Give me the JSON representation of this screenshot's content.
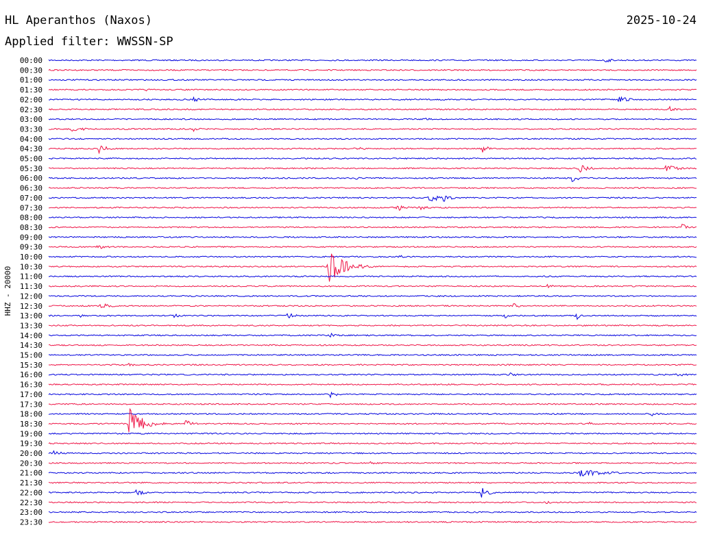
{
  "header": {
    "station": "HL Aperanthos (Naxos)",
    "date": "2025-10-24",
    "filter_label": "Applied filter: WWSSN-SP"
  },
  "chart_data": {
    "type": "line",
    "title": "HL Aperanthos (Naxos)",
    "ylabel": "HHZ - 20000",
    "y_tick_labels": [
      "00:00",
      "00:30",
      "01:00",
      "01:30",
      "02:00",
      "02:30",
      "03:00",
      "03:30",
      "04:00",
      "04:30",
      "05:00",
      "05:30",
      "06:00",
      "06:30",
      "07:00",
      "07:30",
      "08:00",
      "08:30",
      "09:00",
      "09:30",
      "10:00",
      "10:30",
      "11:00",
      "11:30",
      "12:00",
      "12:30",
      "13:00",
      "13:30",
      "14:00",
      "14:30",
      "15:00",
      "15:30",
      "16:00",
      "16:30",
      "17:00",
      "17:30",
      "18:00",
      "18:30",
      "19:00",
      "19:30",
      "20:00",
      "20:30",
      "21:00",
      "21:30",
      "22:00",
      "22:30",
      "23:00",
      "23:30"
    ],
    "trace_colors": [
      "#0000dd",
      "#ee1144"
    ],
    "row_minutes": 30,
    "events": [
      {
        "row": "00:00",
        "minute": 25.7,
        "amplitude": 4,
        "duration": 0.6
      },
      {
        "row": "01:30",
        "minute": 4.5,
        "amplitude": 2,
        "duration": 0.5
      },
      {
        "row": "02:00",
        "minute": 6.7,
        "amplitude": 4,
        "duration": 0.6
      },
      {
        "row": "02:00",
        "minute": 26.3,
        "amplitude": 5,
        "duration": 1.0
      },
      {
        "row": "02:30",
        "minute": 28.7,
        "amplitude": 6,
        "duration": 0.4
      },
      {
        "row": "03:00",
        "minute": 17.3,
        "amplitude": 2,
        "duration": 1.0
      },
      {
        "row": "03:30",
        "minute": 1.0,
        "amplitude": 4,
        "duration": 1.2
      },
      {
        "row": "03:30",
        "minute": 6.6,
        "amplitude": 5,
        "duration": 0.6
      },
      {
        "row": "04:30",
        "minute": 2.3,
        "amplitude": 8,
        "duration": 0.6
      },
      {
        "row": "04:30",
        "minute": 11.6,
        "amplitude": 3,
        "duration": 0.4
      },
      {
        "row": "04:30",
        "minute": 14.1,
        "amplitude": 3,
        "duration": 1.0
      },
      {
        "row": "04:30",
        "minute": 20.0,
        "amplitude": 7,
        "duration": 0.6
      },
      {
        "row": "05:30",
        "minute": 24.5,
        "amplitude": 7,
        "duration": 0.8
      },
      {
        "row": "05:30",
        "minute": 28.5,
        "amplitude": 6,
        "duration": 1.0
      },
      {
        "row": "06:00",
        "minute": 24.2,
        "amplitude": 6,
        "duration": 0.6
      },
      {
        "row": "06:00",
        "minute": 14.2,
        "amplitude": 3,
        "duration": 0.4
      },
      {
        "row": "07:00",
        "minute": 17.6,
        "amplitude": 9,
        "duration": 0.6
      },
      {
        "row": "07:00",
        "minute": 18.2,
        "amplitude": 7,
        "duration": 0.6
      },
      {
        "row": "07:30",
        "minute": 16.1,
        "amplitude": 6,
        "duration": 0.6
      },
      {
        "row": "07:30",
        "minute": 17.1,
        "amplitude": 5,
        "duration": 0.6
      },
      {
        "row": "08:30",
        "minute": 29.3,
        "amplitude": 7,
        "duration": 0.4
      },
      {
        "row": "09:30",
        "minute": 2.2,
        "amplitude": 4,
        "duration": 0.8
      },
      {
        "row": "10:00",
        "minute": 16.2,
        "amplitude": 4,
        "duration": 0.3
      },
      {
        "row": "10:30",
        "minute": 12.9,
        "amplitude": 26,
        "duration": 1.2
      },
      {
        "row": "11:30",
        "minute": 23.0,
        "amplitude": 3,
        "duration": 0.7
      },
      {
        "row": "12:30",
        "minute": 2.3,
        "amplitude": 4,
        "duration": 1.2
      },
      {
        "row": "12:30",
        "minute": 21.5,
        "amplitude": 4,
        "duration": 0.5
      },
      {
        "row": "13:00",
        "minute": 1.4,
        "amplitude": 3,
        "duration": 0.4
      },
      {
        "row": "13:00",
        "minute": 5.8,
        "amplitude": 4,
        "duration": 0.4
      },
      {
        "row": "13:00",
        "minute": 11.0,
        "amplitude": 5,
        "duration": 0.6
      },
      {
        "row": "13:00",
        "minute": 21.1,
        "amplitude": 4,
        "duration": 0.4
      },
      {
        "row": "13:00",
        "minute": 24.4,
        "amplitude": 8,
        "duration": 0.2
      },
      {
        "row": "14:00",
        "minute": 10.0,
        "amplitude": 2,
        "duration": 0.4
      },
      {
        "row": "14:00",
        "minute": 13.0,
        "amplitude": 4,
        "duration": 0.4
      },
      {
        "row": "15:30",
        "minute": 3.5,
        "amplitude": 4,
        "duration": 0.6
      },
      {
        "row": "16:00",
        "minute": 21.3,
        "amplitude": 4,
        "duration": 0.5
      },
      {
        "row": "16:00",
        "minute": 29.0,
        "amplitude": 3,
        "duration": 1.0
      },
      {
        "row": "17:00",
        "minute": 13.0,
        "amplitude": 5,
        "duration": 0.6
      },
      {
        "row": "18:00",
        "minute": 27.8,
        "amplitude": 4,
        "duration": 0.6
      },
      {
        "row": "18:30",
        "minute": 3.7,
        "amplitude": 24,
        "duration": 1.0
      },
      {
        "row": "18:30",
        "minute": 6.3,
        "amplitude": 7,
        "duration": 0.6
      },
      {
        "row": "18:30",
        "minute": 25.0,
        "amplitude": 3,
        "duration": 0.6
      },
      {
        "row": "20:00",
        "minute": 0.2,
        "amplitude": 5,
        "duration": 0.6
      },
      {
        "row": "20:30",
        "minute": 14.8,
        "amplitude": 4,
        "duration": 0.5
      },
      {
        "row": "21:00",
        "minute": 24.5,
        "amplitude": 6,
        "duration": 2.0
      },
      {
        "row": "22:00",
        "minute": 4.0,
        "amplitude": 6,
        "duration": 0.6
      },
      {
        "row": "22:00",
        "minute": 20.0,
        "amplitude": 9,
        "duration": 0.6
      },
      {
        "row": "22:30",
        "minute": 23.0,
        "amplitude": 3,
        "duration": 0.8
      }
    ]
  }
}
